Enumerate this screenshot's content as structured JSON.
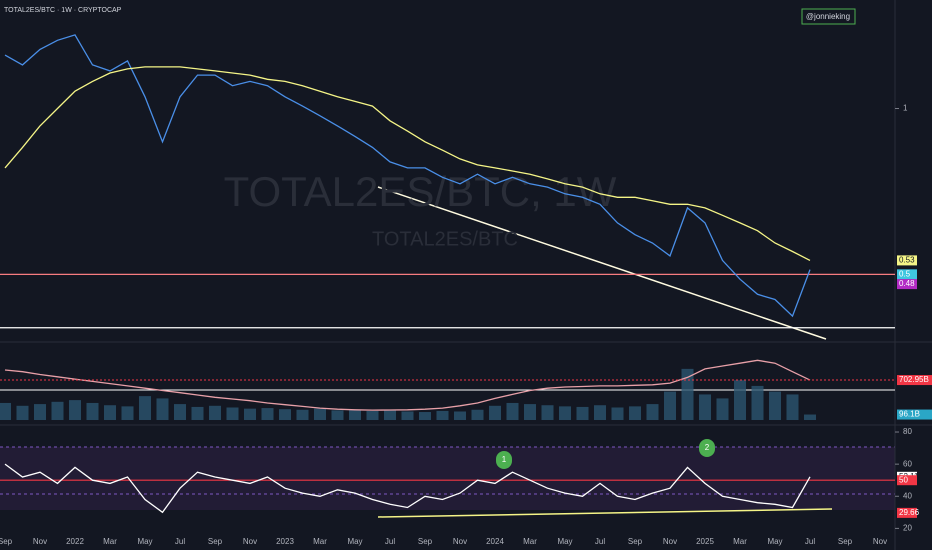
{
  "header": {
    "title": "TOTAL2ES/BTC · 1W · CRYPTOCAP",
    "author": "@jonnieking",
    "watermark": "TOTAL2ES/BTC, 1W",
    "watermark_sub": "TOTAL2ES/BTC"
  },
  "chart_data": [
    {
      "type": "line",
      "log_scale": true,
      "ylim": [
        0.38,
        1.4
      ],
      "yticks": [
        1
      ],
      "series": [
        {
          "color": "#4a8fe8",
          "values": [
            1.25,
            1.2,
            1.28,
            1.33,
            1.36,
            1.2,
            1.17,
            1.22,
            1.05,
            0.87,
            1.05,
            1.15,
            1.15,
            1.1,
            1.12,
            1.1,
            1.05,
            1.01,
            0.97,
            0.93,
            0.89,
            0.85,
            0.8,
            0.78,
            0.78,
            0.75,
            0.73,
            0.76,
            0.73,
            0.75,
            0.73,
            0.72,
            0.7,
            0.69,
            0.67,
            0.62,
            0.59,
            0.57,
            0.54,
            0.66,
            0.62,
            0.53,
            0.49,
            0.46,
            0.45,
            0.42,
            0.51,
            null,
            null,
            null,
            null
          ]
        },
        {
          "color": "#f5f587",
          "values": [
            0.78,
            0.85,
            0.93,
            1.0,
            1.075,
            1.12,
            1.16,
            1.18,
            1.19,
            1.19,
            1.19,
            1.18,
            1.17,
            1.16,
            1.15,
            1.13,
            1.12,
            1.1,
            1.075,
            1.05,
            1.03,
            1.01,
            0.95,
            0.91,
            0.87,
            0.84,
            0.81,
            0.79,
            0.78,
            0.77,
            0.76,
            0.745,
            0.73,
            0.72,
            0.7,
            0.69,
            0.69,
            0.68,
            0.67,
            0.67,
            0.66,
            0.64,
            0.62,
            0.6,
            0.57,
            0.55,
            0.53,
            null,
            null,
            null,
            null
          ]
        }
      ],
      "hlines": [
        {
          "value": 0.5,
          "color": "#f77c80"
        },
        {
          "value": 0.4,
          "color": "#ffffff"
        }
      ],
      "price_labels": [
        {
          "value": 0.53,
          "color": "#f5f587"
        },
        {
          "value": 0.5,
          "color": "#3fc6e0"
        },
        {
          "value": 0.48,
          "color": "#b22bc4"
        }
      ]
    },
    {
      "type": "bar",
      "ylim": [
        0,
        1320000000000
      ],
      "yticks": [],
      "series": [
        {
          "color": "#2c5570",
          "style": "bar",
          "values": [
            300000000000,
            250000000000,
            280000000000,
            320000000000,
            350000000000,
            300000000000,
            260000000000,
            240000000000,
            420000000000,
            380000000000,
            280000000000,
            230000000000,
            250000000000,
            220000000000,
            200000000000,
            210000000000,
            190000000000,
            180000000000,
            200000000000,
            170000000000,
            180000000000,
            160000000000,
            170000000000,
            150000000000,
            140000000000,
            160000000000,
            150000000000,
            180000000000,
            250000000000,
            300000000000,
            280000000000,
            260000000000,
            240000000000,
            230000000000,
            260000000000,
            220000000000,
            240000000000,
            280000000000,
            500000000000,
            900000000000,
            450000000000,
            380000000000,
            700000000000,
            600000000000,
            500000000000,
            450000000000,
            96100000000,
            null,
            null,
            null,
            null
          ]
        },
        {
          "color": "#e8a0a8",
          "style": "line",
          "values": [
            880000000000,
            850000000000,
            800000000000,
            760000000000,
            720000000000,
            680000000000,
            640000000000,
            600000000000,
            560000000000,
            520000000000,
            480000000000,
            440000000000,
            400000000000,
            370000000000,
            340000000000,
            300000000000,
            270000000000,
            240000000000,
            210000000000,
            190000000000,
            180000000000,
            175000000000,
            176000000000,
            180000000000,
            190000000000,
            210000000000,
            250000000000,
            300000000000,
            380000000000,
            450000000000,
            520000000000,
            560000000000,
            580000000000,
            590000000000,
            600000000000,
            600000000000,
            610000000000,
            620000000000,
            650000000000,
            750000000000,
            900000000000,
            950000000000,
            1000000000000,
            1050000000000,
            1000000000000,
            850000000000,
            702950000000,
            null,
            null,
            null,
            null
          ]
        }
      ],
      "price_labels": [
        {
          "value": 702950000000,
          "label": "702.95B",
          "color": "#f23645",
          "line": "dotted"
        },
        {
          "value": 96100000000,
          "label": "96.1B",
          "color": "#2aa6c6"
        }
      ]
    },
    {
      "type": "line",
      "ylim": [
        19,
        82.5
      ],
      "yticks": [
        80,
        60,
        40,
        20
      ],
      "categories": [
        "Sep",
        null,
        "Nov",
        null,
        "2022",
        null,
        "Mar",
        null,
        "May",
        null,
        "Jul",
        null,
        "Sep",
        null,
        "Nov",
        null,
        "2023",
        null,
        "Mar",
        null,
        "May",
        null,
        "Jul",
        null,
        "Sep",
        null,
        "Nov",
        null,
        "2024",
        null,
        "Mar",
        null,
        "May",
        null,
        "Jul",
        null,
        "Sep",
        null,
        "Nov",
        null,
        "2025",
        null,
        "Mar",
        null,
        "May",
        null,
        "Jul",
        null,
        "Sep",
        null,
        "Nov"
      ],
      "series": [
        {
          "color": "#ffffff",
          "values": [
            60,
            52,
            55,
            48,
            58,
            50,
            48,
            52,
            38,
            30,
            45,
            55,
            52,
            50,
            48,
            52,
            45,
            42,
            40,
            44,
            42,
            38,
            35,
            33,
            40,
            38,
            42,
            50,
            48,
            55,
            50,
            45,
            42,
            40,
            48,
            40,
            38,
            42,
            45,
            58,
            48,
            40,
            38,
            36,
            35,
            33,
            52.11,
            null,
            null,
            null,
            null
          ]
        }
      ],
      "hlines": [
        {
          "value": 50,
          "color": "#f23645"
        }
      ],
      "price_labels": [
        {
          "value": 52.11,
          "color": "#ffffff"
        },
        {
          "value": 50,
          "color": "#f23645"
        },
        {
          "value": 29.66,
          "color": "#f23645"
        }
      ],
      "annotations": [
        "1",
        "2"
      ]
    }
  ]
}
